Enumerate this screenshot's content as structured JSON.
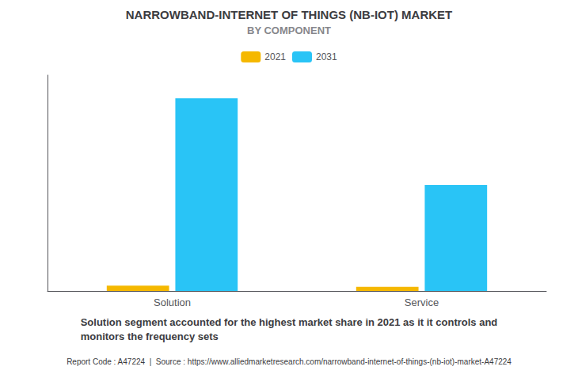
{
  "chart_data": {
    "type": "bar",
    "title": "NARROWBAND-INTERNET OF THINGS (NB-IOT) MARKET",
    "subtitle": "BY COMPONENT",
    "categories": [
      "Solution",
      "Service"
    ],
    "series": [
      {
        "name": "2021",
        "color": "#F5B800",
        "values": [
          0.28,
          0.22
        ]
      },
      {
        "name": "2031",
        "color": "#29C4F6",
        "values": [
          10.0,
          5.5
        ]
      }
    ],
    "ylim": [
      0,
      11.2
    ],
    "yticks": [],
    "grid": false,
    "tick_labels": "x",
    "annotations": [
      "Solution segment accounted for the highest market share in 2021 as it it controls and\nmonitors the frequency sets",
      "Report Code : A47224  |  Source : https://www.alliedmarketresearch.com/narrowband-internet-of-things-(nb-iot)-market-A47224"
    ]
  }
}
